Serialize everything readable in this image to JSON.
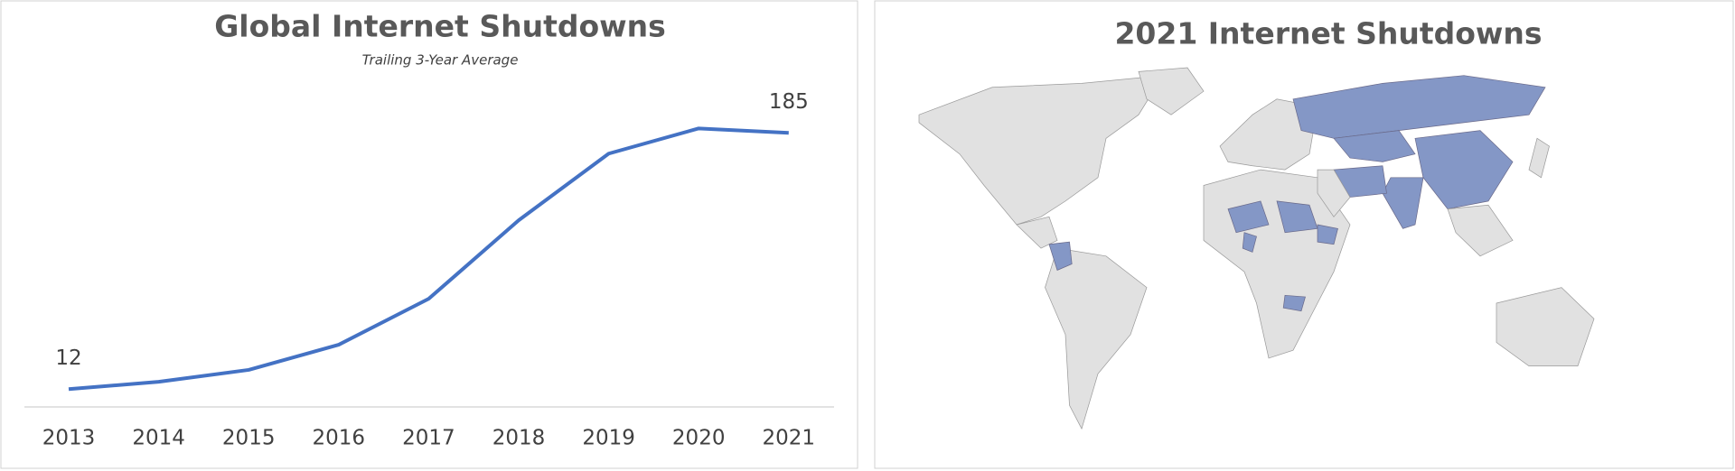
{
  "chart_data": [
    {
      "type": "line",
      "title": "Global Internet Shutdowns",
      "subtitle": "Trailing 3-Year Average",
      "categories": [
        "2013",
        "2014",
        "2015",
        "2016",
        "2017",
        "2018",
        "2019",
        "2020",
        "2021"
      ],
      "values": [
        12,
        17,
        25,
        42,
        73,
        126,
        171,
        188,
        185
      ],
      "color": "#4472c4",
      "ylim": [
        0,
        215
      ]
    },
    {
      "type": "map",
      "title": "2021 Internet Shutdowns",
      "color": "#8497c6"
    }
  ]
}
